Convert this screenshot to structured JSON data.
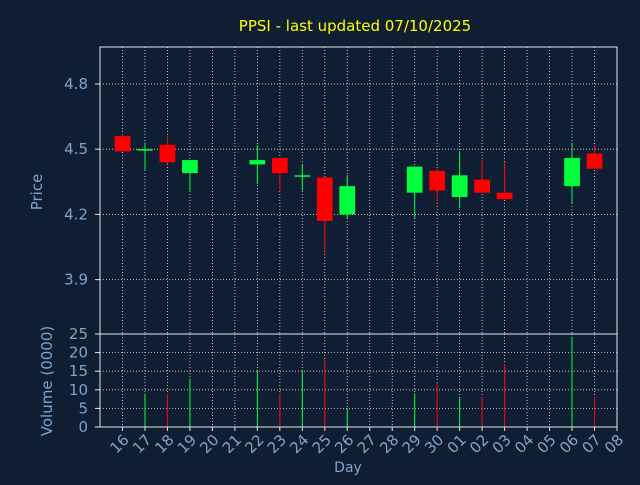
{
  "chart_data": [
    {
      "type": "candlestick",
      "title": "PPSI - last updated 07/10/2025",
      "ylabel": "Price",
      "ylim": [
        3.65,
        4.97
      ],
      "yticks": [
        3.9,
        4.2,
        4.5,
        4.8
      ],
      "ytick_labels": [
        "3.9",
        "4.2",
        "4.5",
        "4.8"
      ],
      "grid": true,
      "categories": [
        "16",
        "17",
        "18",
        "19",
        "20",
        "21",
        "22",
        "23",
        "24",
        "25",
        "26",
        "27",
        "28",
        "29",
        "30",
        "01",
        "02",
        "03",
        "04",
        "05",
        "06",
        "07",
        "08"
      ],
      "up_color": "#00ff3c",
      "down_color": "#ff0000",
      "series": [
        {
          "day": "16",
          "open": 4.56,
          "high": 4.57,
          "low": 4.49,
          "close": 4.49
        },
        {
          "day": "17",
          "open": 4.5,
          "high": 4.53,
          "low": 4.4,
          "close": 4.5
        },
        {
          "day": "18",
          "open": 4.52,
          "high": 4.56,
          "low": 4.43,
          "close": 4.44
        },
        {
          "day": "19",
          "open": 4.39,
          "high": 4.45,
          "low": 4.31,
          "close": 4.45
        },
        {
          "day": "22",
          "open": 4.43,
          "high": 4.52,
          "low": 4.34,
          "close": 4.45
        },
        {
          "day": "23",
          "open": 4.46,
          "high": 4.46,
          "low": 4.31,
          "close": 4.39
        },
        {
          "day": "24",
          "open": 4.38,
          "high": 4.43,
          "low": 4.31,
          "close": 4.38
        },
        {
          "day": "25",
          "open": 4.37,
          "high": 4.37,
          "low": 4.02,
          "close": 4.17
        },
        {
          "day": "26",
          "open": 4.2,
          "high": 4.38,
          "low": 4.18,
          "close": 4.33
        },
        {
          "day": "29",
          "open": 4.3,
          "high": 4.42,
          "low": 4.18,
          "close": 4.42
        },
        {
          "day": "30",
          "open": 4.4,
          "high": 4.41,
          "low": 4.25,
          "close": 4.31
        },
        {
          "day": "01",
          "open": 4.28,
          "high": 4.49,
          "low": 4.23,
          "close": 4.38
        },
        {
          "day": "02",
          "open": 4.36,
          "high": 4.45,
          "low": 4.3,
          "close": 4.3
        },
        {
          "day": "03",
          "open": 4.3,
          "high": 4.44,
          "low": 4.27,
          "close": 4.27
        },
        {
          "day": "06",
          "open": 4.33,
          "high": 4.53,
          "low": 4.25,
          "close": 4.46
        },
        {
          "day": "07",
          "open": 4.48,
          "high": 4.52,
          "low": 4.41,
          "close": 4.41
        }
      ]
    },
    {
      "type": "bar",
      "ylabel": "Volume (0000)",
      "xlabel": "Day",
      "ylim": [
        0,
        25
      ],
      "yticks": [
        0,
        5,
        10,
        15,
        20,
        25
      ],
      "ytick_labels": [
        "0",
        "5",
        "10",
        "15",
        "20",
        "25"
      ],
      "grid": true,
      "categories": [
        "16",
        "17",
        "18",
        "19",
        "20",
        "21",
        "22",
        "23",
        "24",
        "25",
        "26",
        "27",
        "28",
        "29",
        "30",
        "01",
        "02",
        "03",
        "04",
        "05",
        "06",
        "07",
        "08"
      ],
      "values": [
        {
          "day": "17",
          "value": 9,
          "direction": "up"
        },
        {
          "day": "18",
          "value": 9,
          "direction": "down"
        },
        {
          "day": "19",
          "value": 13,
          "direction": "up"
        },
        {
          "day": "22",
          "value": 15,
          "direction": "up"
        },
        {
          "day": "23",
          "value": 9,
          "direction": "down"
        },
        {
          "day": "24",
          "value": 15,
          "direction": "up"
        },
        {
          "day": "25",
          "value": 18,
          "direction": "down"
        },
        {
          "day": "26",
          "value": 5,
          "direction": "up"
        },
        {
          "day": "29",
          "value": 9,
          "direction": "up"
        },
        {
          "day": "30",
          "value": 12,
          "direction": "down"
        },
        {
          "day": "01",
          "value": 8,
          "direction": "up"
        },
        {
          "day": "02",
          "value": 8,
          "direction": "down"
        },
        {
          "day": "03",
          "value": 17,
          "direction": "down"
        },
        {
          "day": "06",
          "value": 24,
          "direction": "up"
        },
        {
          "day": "07",
          "value": 8,
          "direction": "down"
        }
      ]
    }
  ],
  "colors": {
    "background": "#0f1e32",
    "title": "#ffff00",
    "axis_text": "#7fa4cc",
    "axis_line": "#e6e6e6",
    "grid": "#e6e6e6"
  }
}
